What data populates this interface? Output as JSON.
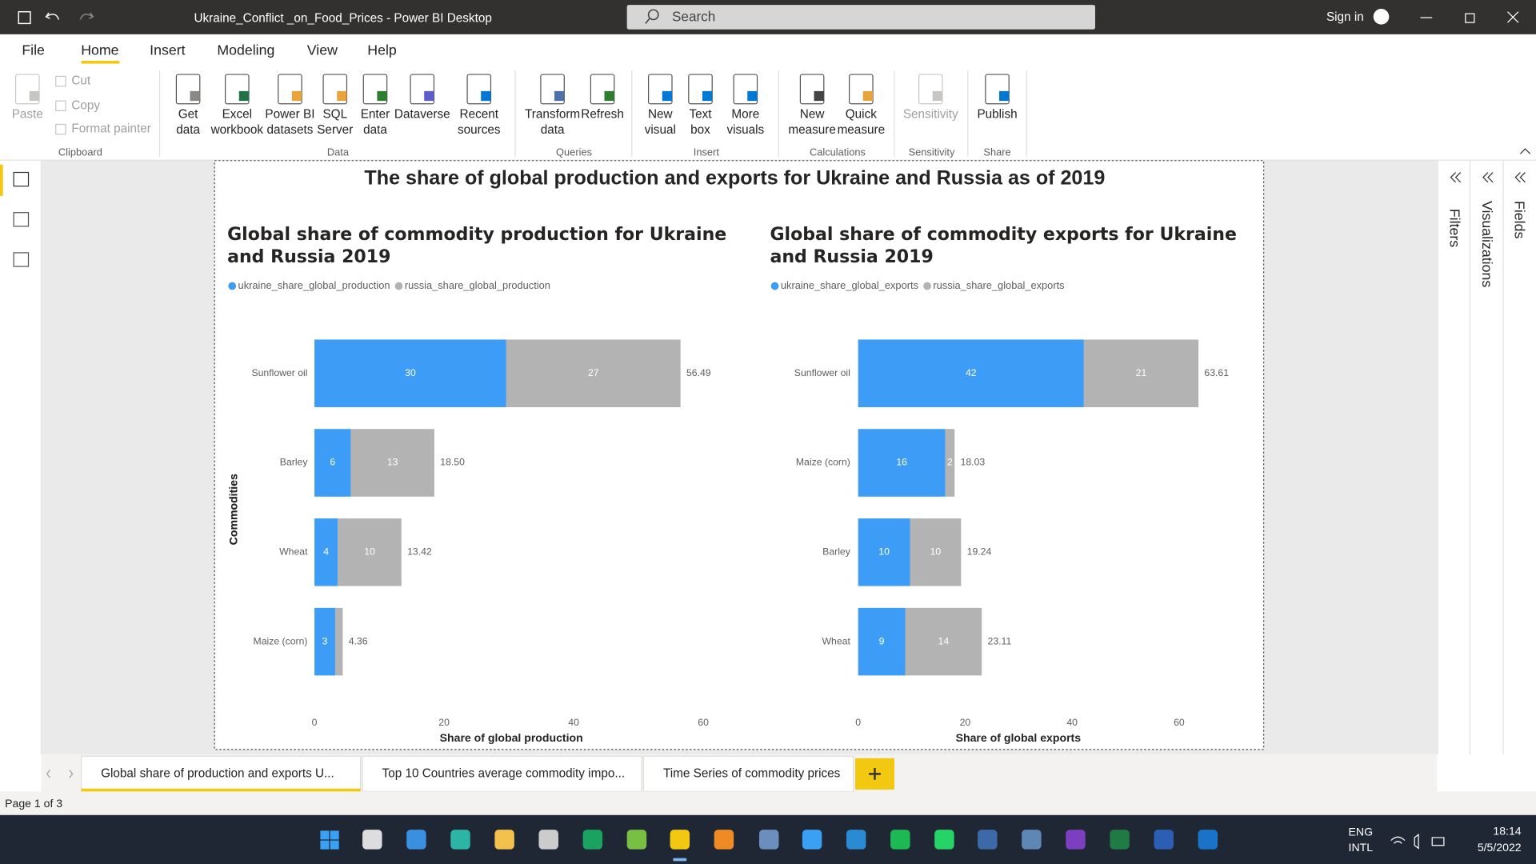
{
  "window": {
    "title": "Ukraine_Conflict _on_Food_Prices - Power BI Desktop",
    "search": "Search",
    "sign_in": "Sign in"
  },
  "menu": [
    "File",
    "Home",
    "Insert",
    "Modeling",
    "View",
    "Help"
  ],
  "ribbon_buttons": [
    [
      "Paste"
    ],
    [
      "Cut"
    ],
    [
      "Copy"
    ],
    [
      "Format painter"
    ],
    [
      "Get",
      "data"
    ],
    [
      "Excel",
      "workbook"
    ],
    [
      "Power BI",
      "datasets"
    ],
    [
      "SQL",
      "Server"
    ],
    [
      "Enter",
      "data"
    ],
    [
      "Dataverse"
    ],
    [
      "Recent",
      "sources"
    ],
    [
      "Transform",
      "data"
    ],
    [
      "Refresh"
    ],
    [
      "New",
      "visual"
    ],
    [
      "Text",
      "box"
    ],
    [
      "More",
      "visuals"
    ],
    [
      "New",
      "measure"
    ],
    [
      "Quick",
      "measure"
    ],
    [
      "Sensitivity"
    ],
    [
      "Publish"
    ]
  ],
  "ribbon_groups": [
    "Clipboard",
    "Data",
    "Queries",
    "Insert",
    "Calculations",
    "Sensitivity",
    "Share"
  ],
  "report_title": "The share of global production and exports for Ukraine and Russia as of 2019",
  "chart_data": [
    {
      "type": "bar",
      "orientation": "horizontal",
      "stacked": true,
      "title": "Global share of commodity production for Ukraine and Russia 2019",
      "x_label": "Share of global production",
      "y_label": "Commodities",
      "legend": "top-left",
      "grid": false,
      "categories": [
        "Sunflower oil",
        "Barley",
        "Wheat",
        "Maize (corn)"
      ],
      "series": [
        {
          "name": "ukraine_share_global_production",
          "color": "#3d9cf5",
          "values": [
            29.6,
            5.6,
            3.6,
            3.2
          ],
          "value_labels": [
            "30",
            "6",
            "4",
            "3"
          ]
        },
        {
          "name": "russia_share_global_production",
          "color": "#b3b3b3",
          "values": [
            26.89,
            12.9,
            9.82,
            1.16
          ],
          "value_labels": [
            "27",
            "13",
            "10",
            null
          ]
        }
      ],
      "totals": [
        56.49,
        18.5,
        13.42,
        4.36
      ],
      "total_labels": [
        "56.49",
        "18.50",
        "13.42",
        "4.36"
      ],
      "xlim": [
        0,
        65
      ],
      "xticks": [
        0,
        20,
        40,
        60
      ]
    },
    {
      "type": "bar",
      "orientation": "horizontal",
      "stacked": true,
      "title": "Global share of commodity exports for Ukraine and Russia 2019",
      "x_label": "Share of global exports",
      "y_label": "Commodities",
      "legend": "top-left",
      "grid": false,
      "categories": [
        "Sunflower oil",
        "Maize (corn)",
        "Barley",
        "Wheat"
      ],
      "series": [
        {
          "name": "ukraine_share_global_exports",
          "color": "#3d9cf5",
          "values": [
            42.2,
            16.3,
            9.7,
            8.8
          ],
          "value_labels": [
            "42",
            "16",
            "10",
            "9"
          ]
        },
        {
          "name": "russia_share_global_exports",
          "color": "#b3b3b3",
          "values": [
            21.41,
            1.73,
            9.54,
            14.31
          ],
          "value_labels": [
            "21",
            "2",
            "10",
            "14"
          ]
        }
      ],
      "totals": [
        63.61,
        18.03,
        19.24,
        23.11
      ],
      "total_labels": [
        "63.61",
        "18.03",
        "19.24",
        "23.11"
      ],
      "xlim": [
        0,
        65
      ],
      "xticks": [
        0,
        20,
        40,
        60
      ]
    }
  ],
  "pages": [
    "Global share of production and exports U...",
    "Top 10 Countries average commodity impo...",
    "Time Series of commodity prices"
  ],
  "status": "Page 1 of 3",
  "panes": [
    "Filters",
    "Visualizations",
    "Fields"
  ],
  "tray": {
    "language": [
      "ENG",
      "INTL"
    ],
    "time": "18:14",
    "date": "5/5/2022"
  }
}
